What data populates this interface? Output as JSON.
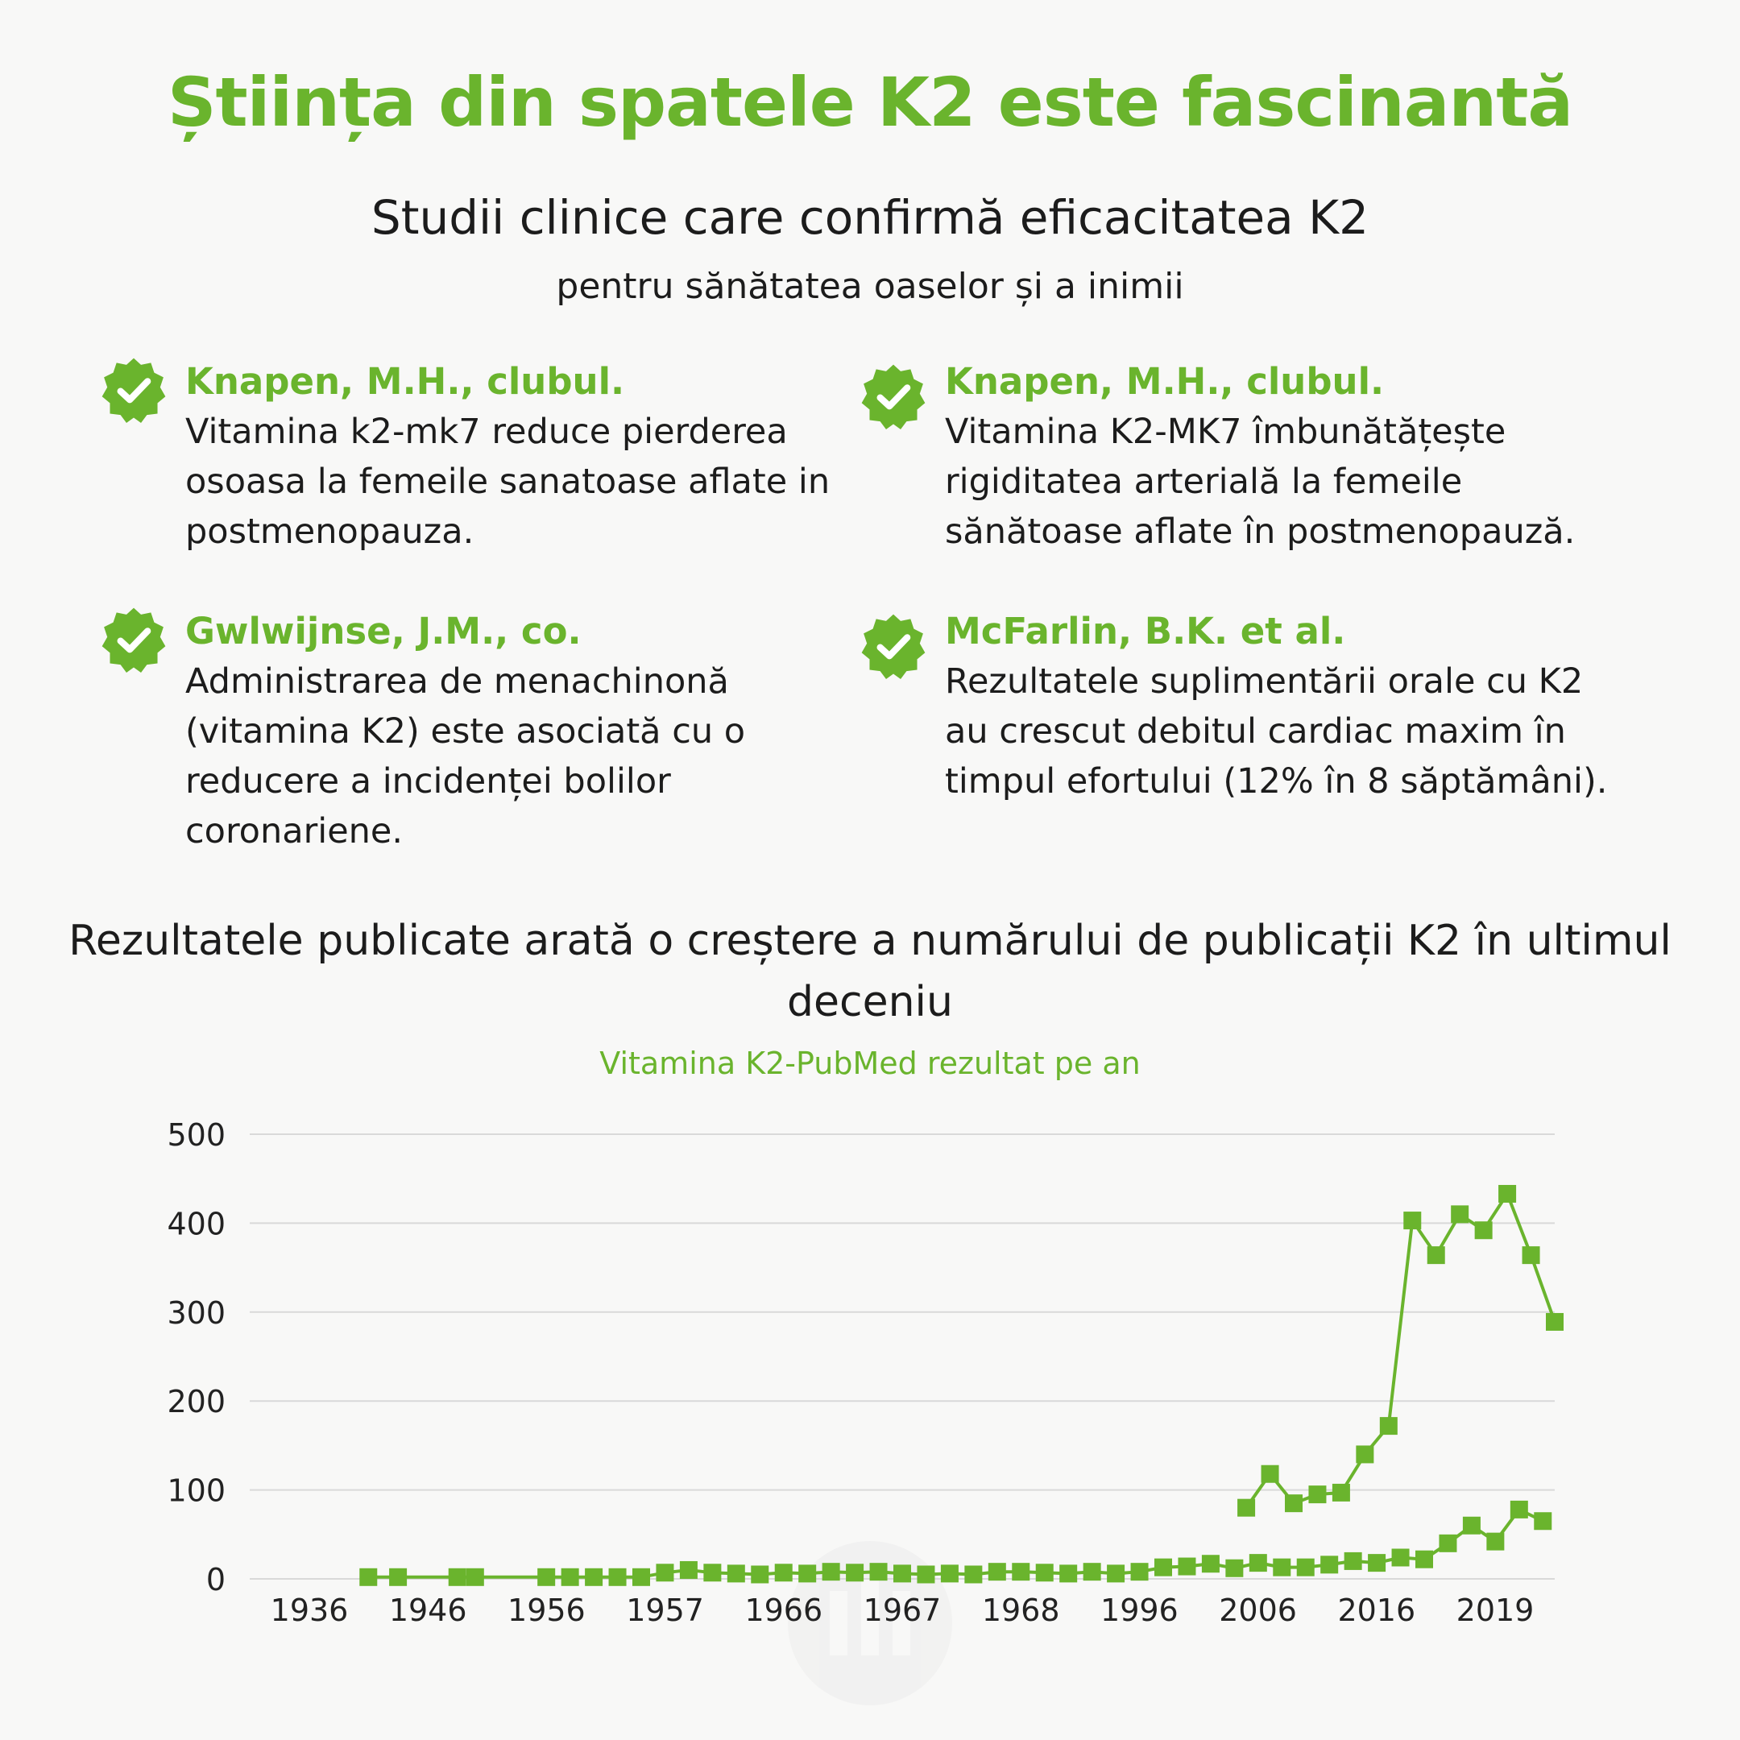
{
  "header": {
    "title": "Știința din spatele K2 este fascinantă",
    "subtitle": "Studii clinice care confirmă eficacitatea K2",
    "subline": "pentru sănătatea oaselor și a inimii"
  },
  "studies": [
    {
      "author": "Knapen, M.H., clubul.",
      "text": "Vitamina k2-mk7 reduce pierderea osoasa la femeile sanatoase aflate in postmenopauza."
    },
    {
      "author": "Knapen, M.H., clubul.",
      "text": "Vitamina K2-MK7 îmbunătățește rigiditatea arterială la femeile sănătoase aflate în postmenopauză."
    },
    {
      "author": "Gwlwijnse, J.M., co.",
      "text": "Administrarea de menachinonă (vitamina K2) este asociată cu o reducere a incidenței bolilor coronariene."
    },
    {
      "author": "McFarlin, B.K. et al.",
      "text": "Rezultatele suplimentării orale cu K2 au crescut debitul cardiac maxim în timpul efortului (12% în 8 săptămâni)."
    }
  ],
  "colors": {
    "accent": "#6ab42d",
    "grid": "#d9d9d9"
  },
  "icons": {
    "study_badge": "check-badge-icon"
  },
  "chart_data": {
    "type": "line",
    "title": "Rezultatele publicate arată o creștere a numărului de publicații K2 în ultimul deceniu",
    "subtitle": "Vitamina K2-PubMed rezultat pe an",
    "xlabel": "",
    "ylabel": "",
    "ylim": [
      0,
      500
    ],
    "yticks": [
      0,
      100,
      200,
      300,
      400,
      500
    ],
    "xticks": [
      "1936",
      "1946",
      "1956",
      "1957",
      "1966",
      "1967",
      "1968",
      "1996",
      "2006",
      "2016",
      "2019"
    ],
    "xlim": [
      0,
      110
    ],
    "grid": true,
    "legend": "none",
    "series": [
      {
        "x": [
          10,
          12.5,
          17.5,
          19,
          25,
          27,
          29,
          31,
          33,
          35,
          37,
          39,
          41,
          43,
          45,
          47,
          49,
          51,
          53,
          55,
          57,
          59,
          61,
          63,
          65,
          67,
          69,
          71,
          73,
          75,
          77,
          79,
          81,
          83,
          85,
          87,
          89,
          91,
          93,
          95,
          97,
          99,
          101,
          103,
          105,
          107,
          109
        ],
        "values": [
          2,
          2,
          2,
          2,
          2,
          2,
          2,
          2,
          2,
          7,
          10,
          7,
          6,
          5,
          7,
          6,
          8,
          7,
          8,
          6,
          5,
          6,
          5,
          8,
          8,
          7,
          6,
          8,
          6,
          8,
          13,
          14,
          17,
          12,
          18,
          13,
          13,
          16,
          20,
          18,
          24,
          22,
          40,
          60,
          42,
          78,
          65
        ],
        "name": ""
      },
      {
        "x": [
          84,
          86,
          88,
          90,
          92,
          94,
          96,
          98,
          100,
          102,
          104,
          106,
          108,
          110
        ],
        "values": [
          80,
          118,
          85,
          95,
          97,
          140,
          172,
          403,
          364,
          410,
          392,
          433,
          364,
          289
        ],
        "name": ""
      }
    ]
  }
}
